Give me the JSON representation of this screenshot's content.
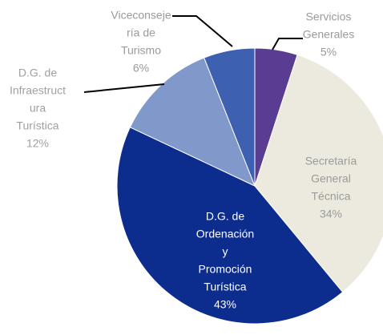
{
  "chart_data": {
    "type": "pie",
    "categories": [
      [
        "Servicios",
        "Generales"
      ],
      [
        "Secretaría",
        "General",
        "Técnica"
      ],
      [
        "D.G. de",
        "Ordenación",
        "y",
        "Promoción",
        "Turística"
      ],
      [
        "D.G. de",
        "Infraestruct",
        "ura",
        "Turística"
      ],
      [
        "Viceconseje",
        "ría de",
        "Turismo"
      ]
    ],
    "values": [
      5,
      34,
      43,
      12,
      6
    ],
    "value_labels": [
      "5%",
      "34%",
      "43%",
      "12%",
      "6%"
    ],
    "colors": [
      "#5a3d92",
      "#eceade",
      "#0d2d8e",
      "#8198cb",
      "#3d60b1"
    ]
  }
}
